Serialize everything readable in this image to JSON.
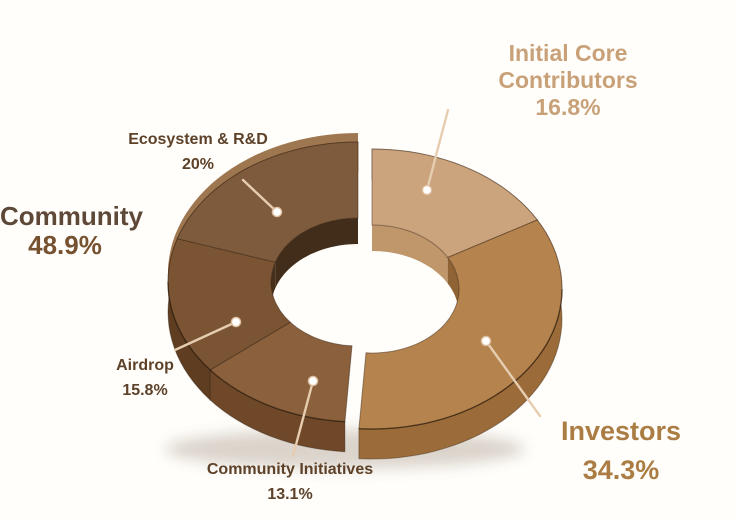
{
  "chart_data": {
    "type": "pie",
    "variant": "3d-donut-exploded",
    "title": "",
    "start_angle_deg": 0,
    "direction": "clockwise",
    "unit": "%",
    "segments": [
      {
        "label": "Initial Core Contributors",
        "value": 16.8,
        "group": "right",
        "face_color": "#cba47d",
        "side_color": "#b68d60",
        "inner_wall_color": "#c0966b"
      },
      {
        "label": "Investors",
        "value": 34.3,
        "group": "right",
        "face_color": "#b5834e",
        "side_color": "#9b6c39",
        "inner_wall_color": "#8f6334"
      },
      {
        "label": "Community Initiatives",
        "value": 13.1,
        "group": "left",
        "face_color": "#8a603d",
        "side_color": "#6e4828",
        "inner_wall_color": "#4a3420"
      },
      {
        "label": "Airdrop",
        "value": 15.8,
        "group": "left",
        "face_color": "#7a5433",
        "side_color": "#5e3d21",
        "inner_wall_color": "#46301c"
      },
      {
        "label": "Ecosystem & R&D",
        "value": 20,
        "group": "left",
        "face_color": "#7d5b3c",
        "side_color": "#6a4a2c",
        "inner_wall_color": "#422d1a"
      }
    ],
    "group_label": {
      "label": "Community",
      "value": 48.9,
      "includes": [
        "Ecosystem & R&D",
        "Airdrop",
        "Community Initiatives"
      ]
    },
    "legend_position": "around-chart",
    "grid": false
  },
  "labels": {
    "icc": {
      "line1": "Initial Core",
      "line2": "Contributors",
      "pct": "16.8%"
    },
    "investors": {
      "line1": "Investors",
      "pct": "34.3%"
    },
    "community": {
      "line1": "Community",
      "pct": "48.9%"
    },
    "ecosystem": {
      "line1": "Ecosystem & R&D",
      "pct": "20%"
    },
    "airdrop": {
      "line1": "Airdrop",
      "pct": "15.8%"
    },
    "ci": {
      "line1": "Community Initiatives",
      "pct": "13.1%"
    }
  },
  "colors": {
    "background": "#fffefb",
    "label_light_tan": "#c9a179",
    "label_caramel": "#ab7d44",
    "label_dark_brown": "#5d4128",
    "label_community_name": "#5e4837",
    "label_community_pct": "#775230",
    "leader_line": "#e6cdb0",
    "leader_dot_fill": "#ffffff",
    "leader_dot_ring": "#dcbe9e",
    "back_rim_band": "#9e7650",
    "shadow": "#8a7460"
  }
}
